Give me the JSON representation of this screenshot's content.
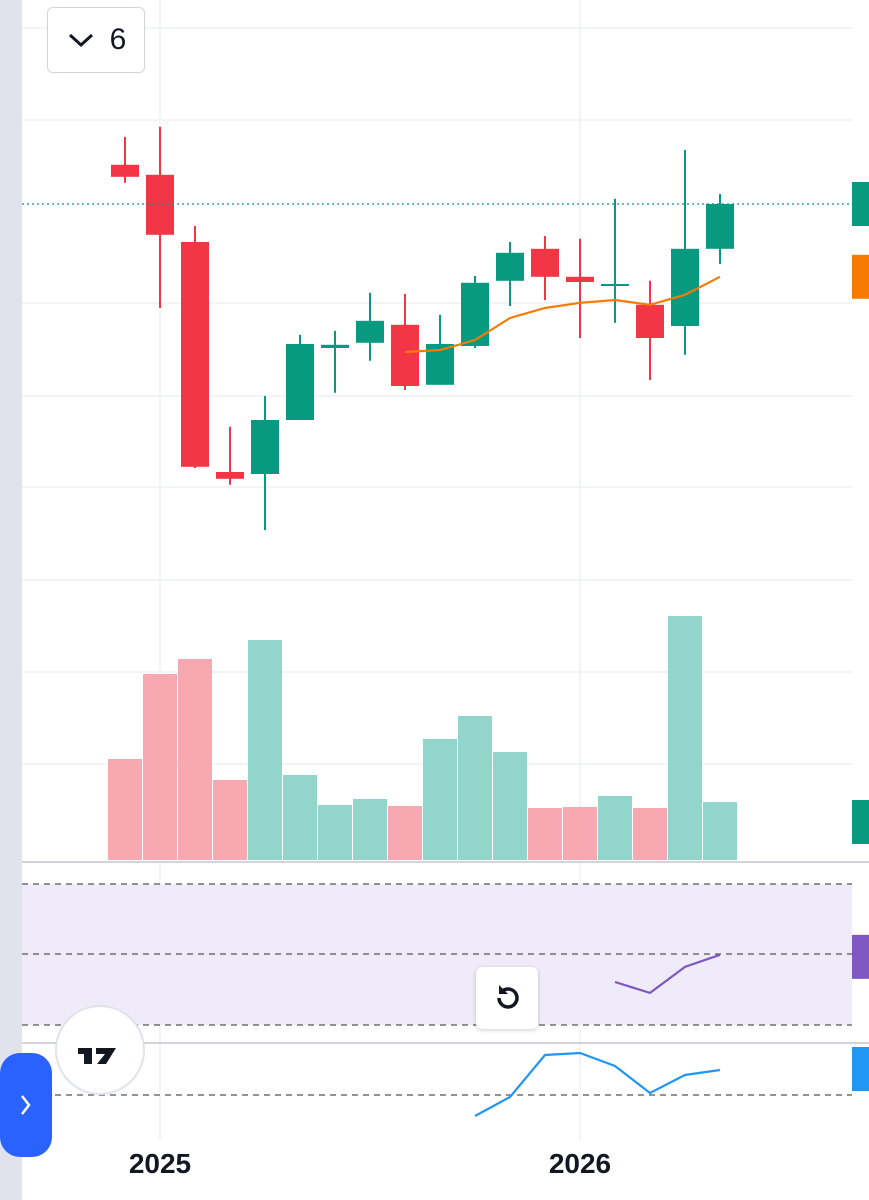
{
  "toolbar": {
    "interval": "6"
  },
  "chart_data": [
    {
      "type": "candlestick",
      "categories": [
        null,
        "2025",
        null,
        null,
        null,
        null,
        null,
        null,
        null,
        null,
        null,
        null,
        null,
        "2026",
        null,
        null,
        null,
        null
      ],
      "open": [
        108.8,
        106.3,
        89.5,
        32,
        31.5,
        45,
        63,
        64.3,
        68.8,
        53.8,
        63.5,
        79.8,
        87.8,
        80.8,
        78.5,
        73.8,
        68.5,
        87.8
      ],
      "high": [
        115.8,
        118.3,
        93.5,
        43.3,
        51,
        66.3,
        67.3,
        76.8,
        76.5,
        71.3,
        81,
        89.5,
        91,
        90.3,
        100.3,
        79.8,
        112.5,
        101.5
      ],
      "low": [
        104.3,
        73,
        33,
        28.8,
        17.5,
        45,
        51.8,
        59.8,
        52.5,
        53.8,
        63,
        73.5,
        75,
        65.5,
        69.3,
        55,
        61.3,
        84
      ],
      "close": [
        105.8,
        91.3,
        33.3,
        30.3,
        45,
        64,
        63.8,
        69.8,
        53.5,
        64,
        79.3,
        86.8,
        80.8,
        79.5,
        79,
        65.5,
        87.8,
        99
      ],
      "up_color": "#089981",
      "down_color": "#f23645",
      "ylim": [
        0,
        125
      ],
      "series": [
        {
          "color": "#f57c00",
          "values": [
            null,
            null,
            null,
            null,
            null,
            null,
            null,
            null,
            62,
            62.5,
            65,
            70.5,
            73,
            74.3,
            75,
            73.8,
            76.3,
            80.8
          ]
        }
      ]
    },
    {
      "type": "bar",
      "values": [
        101,
        186,
        201,
        80,
        220,
        85,
        55,
        61,
        54,
        121,
        144,
        108,
        52,
        53,
        64,
        52,
        244,
        58
      ],
      "up_color": "#92d5ca",
      "down_color": "#f8a8b0",
      "ylim": [
        0,
        300
      ]
    },
    {
      "type": "line",
      "values": [
        null,
        null,
        null,
        null,
        null,
        null,
        null,
        null,
        null,
        null,
        null,
        null,
        null,
        null,
        42.2,
        39.1,
        46.5,
        49.9
      ],
      "color": "#7e57c2",
      "ylim": [
        30,
        70
      ]
    },
    {
      "type": "line",
      "values": [
        null,
        null,
        null,
        null,
        null,
        null,
        null,
        null,
        null,
        null,
        -21,
        -2,
        40,
        42,
        29,
        2,
        20,
        25
      ],
      "color": "#2196f3",
      "ylim": [
        -50,
        50
      ]
    }
  ]
}
